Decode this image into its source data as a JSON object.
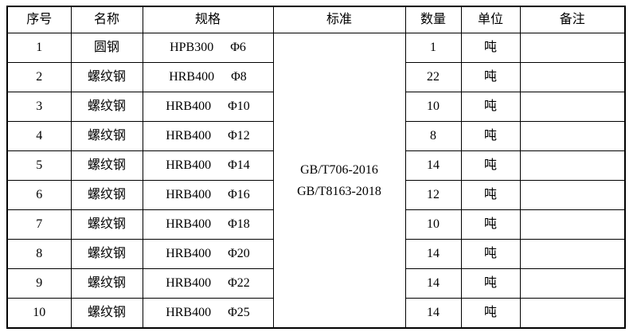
{
  "page": {
    "background": "#ffffff",
    "border_color": "#000000",
    "text_color": "#000000"
  },
  "table": {
    "headers": {
      "seq": "序号",
      "name": "名称",
      "spec": "规格",
      "standard": "标准",
      "qty": "数量",
      "unit": "单位",
      "remark": "备注"
    },
    "standard": [
      "GB/T706-2016",
      "GB/T8163-2018"
    ],
    "rows": [
      {
        "seq": "1",
        "name": "圆钢",
        "spec_grade": "HPB300",
        "spec_size": "Φ6",
        "qty": "1",
        "unit": "吨",
        "remark": ""
      },
      {
        "seq": "2",
        "name": "螺纹钢",
        "spec_grade": "HRB400",
        "spec_size": "Φ8",
        "qty": "22",
        "unit": "吨",
        "remark": ""
      },
      {
        "seq": "3",
        "name": "螺纹钢",
        "spec_grade": "HRB400",
        "spec_size": "Φ10",
        "qty": "10",
        "unit": "吨",
        "remark": ""
      },
      {
        "seq": "4",
        "name": "螺纹钢",
        "spec_grade": "HRB400",
        "spec_size": "Φ12",
        "qty": "8",
        "unit": "吨",
        "remark": ""
      },
      {
        "seq": "5",
        "name": "螺纹钢",
        "spec_grade": "HRB400",
        "spec_size": "Φ14",
        "qty": "14",
        "unit": "吨",
        "remark": ""
      },
      {
        "seq": "6",
        "name": "螺纹钢",
        "spec_grade": "HRB400",
        "spec_size": "Φ16",
        "qty": "12",
        "unit": "吨",
        "remark": ""
      },
      {
        "seq": "7",
        "name": "螺纹钢",
        "spec_grade": "HRB400",
        "spec_size": "Φ18",
        "qty": "10",
        "unit": "吨",
        "remark": ""
      },
      {
        "seq": "8",
        "name": "螺纹钢",
        "spec_grade": "HRB400",
        "spec_size": "Φ20",
        "qty": "14",
        "unit": "吨",
        "remark": ""
      },
      {
        "seq": "9",
        "name": "螺纹钢",
        "spec_grade": "HRB400",
        "spec_size": "Φ22",
        "qty": "14",
        "unit": "吨",
        "remark": ""
      },
      {
        "seq": "10",
        "name": "螺纹钢",
        "spec_grade": "HRB400",
        "spec_size": "Φ25",
        "qty": "14",
        "unit": "吨",
        "remark": ""
      }
    ]
  }
}
